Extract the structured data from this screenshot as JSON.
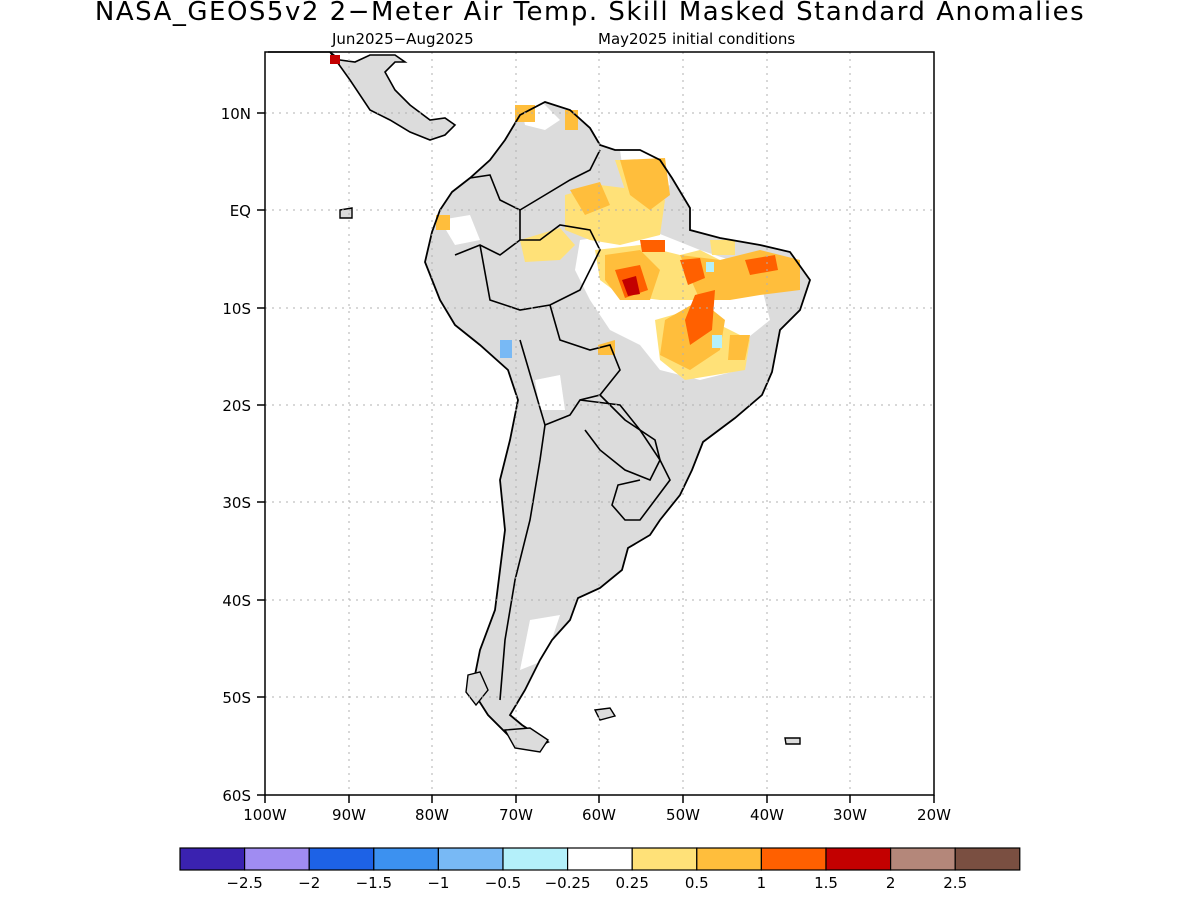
{
  "title": "NASA_GEOS5v2 2−Meter Air Temp. Skill Masked Standard Anomalies",
  "subtitle_left": "Jun2025−Aug2025",
  "subtitle_right": "May2025 initial conditions",
  "map": {
    "lon_range": [
      -100,
      -20
    ],
    "lat_range": [
      -60,
      15
    ],
    "lon_ticks": [
      "100W",
      "90W",
      "80W",
      "70W",
      "60W",
      "50W",
      "40W",
      "30W",
      "20W"
    ],
    "lat_ticks": [
      "10N",
      "EQ",
      "10S",
      "20S",
      "30S",
      "40S",
      "50S",
      "60S"
    ],
    "gridlines": "dotted",
    "land_mask_color": "#dcdcdc"
  },
  "colorbar": {
    "colors": [
      "#3a22b0",
      "#a08cf2",
      "#1d62e6",
      "#3c91f0",
      "#78b9f5",
      "#b4f0fa",
      "#ffffff",
      "#ffe178",
      "#ffbe3c",
      "#ff6000",
      "#c30000",
      "#b4877a",
      "#7a4f41"
    ],
    "labels": [
      "−2.5",
      "−2",
      "−1.5",
      "−1",
      "−0.5",
      "−0.25",
      "0.25",
      "0.5",
      "1",
      "1.5",
      "2",
      "2.5"
    ]
  }
}
